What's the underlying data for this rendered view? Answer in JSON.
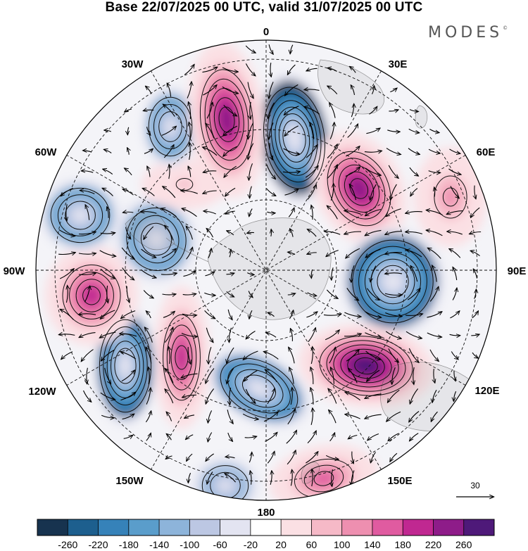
{
  "title": "Base 22/07/2025 00 UTC, valid 31/07/2025 00 UTC",
  "logo": {
    "text": "MODES",
    "mark": "©"
  },
  "map": {
    "projection": "south-polar-stereographic",
    "longitude_labels": [
      "0",
      "30E",
      "60E",
      "90E",
      "120E",
      "150E",
      "180",
      "150W",
      "120W",
      "90W",
      "60W",
      "30W"
    ]
  },
  "reference_vector": {
    "value": "30",
    "icon": "arrow-right-icon"
  },
  "colorbar": {
    "tick_labels": [
      "-260",
      "-220",
      "-180",
      "-140",
      "-100",
      "-60",
      "-20",
      "20",
      "60",
      "100",
      "140",
      "180",
      "220",
      "260"
    ],
    "colors": [
      "#17334f",
      "#1d5f8e",
      "#3682b9",
      "#5a9dcb",
      "#8db4da",
      "#bcc7e3",
      "#e3e4f1",
      "#ffffff",
      "#fbe0e4",
      "#f6b9c7",
      "#ee8fb0",
      "#e05ba0",
      "#c02891",
      "#8e1c89",
      "#4e1979"
    ]
  },
  "anomaly_centers": [
    {
      "name": "low-0E",
      "value": -260
    },
    {
      "name": "high-30E",
      "value": 220
    },
    {
      "name": "high-60E",
      "value": 100
    },
    {
      "name": "low-90E",
      "value": -220
    },
    {
      "name": "high-120E",
      "value": 260
    },
    {
      "name": "high-160E",
      "value": 140
    },
    {
      "name": "low-170W",
      "value": -180
    },
    {
      "name": "low-150W",
      "value": -100
    },
    {
      "name": "high-130W",
      "value": 180
    },
    {
      "name": "low-120W",
      "value": -220
    },
    {
      "name": "high-95W",
      "value": 180
    },
    {
      "name": "low-75W",
      "value": -140
    },
    {
      "name": "low-55W",
      "value": -140
    },
    {
      "name": "high-40W",
      "value": 60
    },
    {
      "name": "low-25W",
      "value": -140
    },
    {
      "name": "high-10W",
      "value": 220
    }
  ]
}
